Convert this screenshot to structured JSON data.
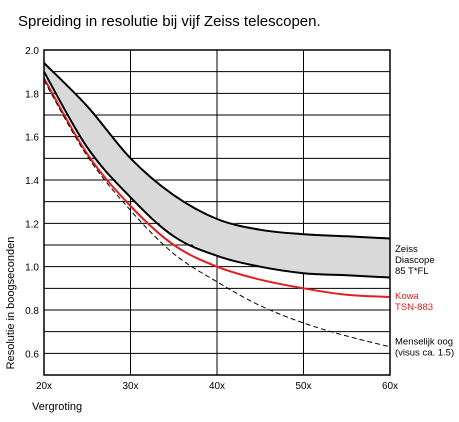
{
  "chart_data": {
    "type": "line",
    "title": "Spreiding in resolutie bij vijf Zeiss telescopen.",
    "xlabel": "Vergroting",
    "ylabel": "Resolutie in boogseconden",
    "x_ticks": [
      "20x",
      "30x",
      "40x",
      "50x",
      "60x"
    ],
    "y_ticks": [
      "0.6",
      "0.8",
      "1.0",
      "1.2",
      "1.4",
      "1.6",
      "1.8",
      "2.0"
    ],
    "xlim": [
      20,
      60
    ],
    "ylim": [
      0.5,
      2.0
    ],
    "grid": true,
    "band": {
      "color": "#d9d9d9",
      "upper": [
        {
          "x": 20,
          "y": 1.94
        },
        {
          "x": 25,
          "y": 1.74
        },
        {
          "x": 30,
          "y": 1.5
        },
        {
          "x": 35,
          "y": 1.33
        },
        {
          "x": 40,
          "y": 1.22
        },
        {
          "x": 45,
          "y": 1.17
        },
        {
          "x": 50,
          "y": 1.15
        },
        {
          "x": 55,
          "y": 1.14
        },
        {
          "x": 60,
          "y": 1.13
        }
      ],
      "lower": [
        {
          "x": 20,
          "y": 1.9
        },
        {
          "x": 25,
          "y": 1.55
        },
        {
          "x": 30,
          "y": 1.32
        },
        {
          "x": 35,
          "y": 1.14
        },
        {
          "x": 40,
          "y": 1.05
        },
        {
          "x": 45,
          "y": 1.0
        },
        {
          "x": 50,
          "y": 0.97
        },
        {
          "x": 55,
          "y": 0.96
        },
        {
          "x": 60,
          "y": 0.95
        }
      ]
    },
    "series": [
      {
        "name": "",
        "color": "#000000",
        "dashed": false,
        "points": [
          {
            "x": 20,
            "y": 1.94
          },
          {
            "x": 25,
            "y": 1.74
          },
          {
            "x": 30,
            "y": 1.5
          },
          {
            "x": 35,
            "y": 1.33
          },
          {
            "x": 40,
            "y": 1.22
          },
          {
            "x": 45,
            "y": 1.17
          },
          {
            "x": 50,
            "y": 1.15
          },
          {
            "x": 55,
            "y": 1.14
          },
          {
            "x": 60,
            "y": 1.13
          }
        ]
      },
      {
        "name": "",
        "color": "#000000",
        "dashed": false,
        "points": [
          {
            "x": 20,
            "y": 1.9
          },
          {
            "x": 25,
            "y": 1.55
          },
          {
            "x": 30,
            "y": 1.32
          },
          {
            "x": 35,
            "y": 1.14
          },
          {
            "x": 40,
            "y": 1.05
          },
          {
            "x": 45,
            "y": 1.0
          },
          {
            "x": 50,
            "y": 0.97
          },
          {
            "x": 55,
            "y": 0.96
          },
          {
            "x": 60,
            "y": 0.95
          }
        ]
      },
      {
        "name": "",
        "color": "#e41e1e",
        "dashed": false,
        "points": [
          {
            "x": 20,
            "y": 1.87
          },
          {
            "x": 25,
            "y": 1.52
          },
          {
            "x": 30,
            "y": 1.28
          },
          {
            "x": 35,
            "y": 1.1
          },
          {
            "x": 40,
            "y": 1.0
          },
          {
            "x": 45,
            "y": 0.94
          },
          {
            "x": 50,
            "y": 0.9
          },
          {
            "x": 55,
            "y": 0.87
          },
          {
            "x": 60,
            "y": 0.86
          }
        ]
      },
      {
        "name": "",
        "color": "#000000",
        "dashed": true,
        "points": [
          {
            "x": 20,
            "y": 1.86
          },
          {
            "x": 25,
            "y": 1.51
          },
          {
            "x": 30,
            "y": 1.26
          },
          {
            "x": 35,
            "y": 1.06
          },
          {
            "x": 40,
            "y": 0.93
          },
          {
            "x": 45,
            "y": 0.82
          },
          {
            "x": 50,
            "y": 0.74
          },
          {
            "x": 55,
            "y": 0.68
          },
          {
            "x": 60,
            "y": 0.63
          }
        ]
      }
    ],
    "annotations": [
      {
        "lines": [
          "Zeiss",
          "Diascope",
          "85 T*FL"
        ],
        "color": "#000000",
        "y": 1.03
      },
      {
        "lines": [
          "Kowa",
          "TSN-883"
        ],
        "color": "#e41e1e",
        "y": 0.84
      },
      {
        "lines": [
          "Menselijk oog",
          "(visus ca. 1.5)"
        ],
        "color": "#000000",
        "y": 0.63
      }
    ]
  }
}
